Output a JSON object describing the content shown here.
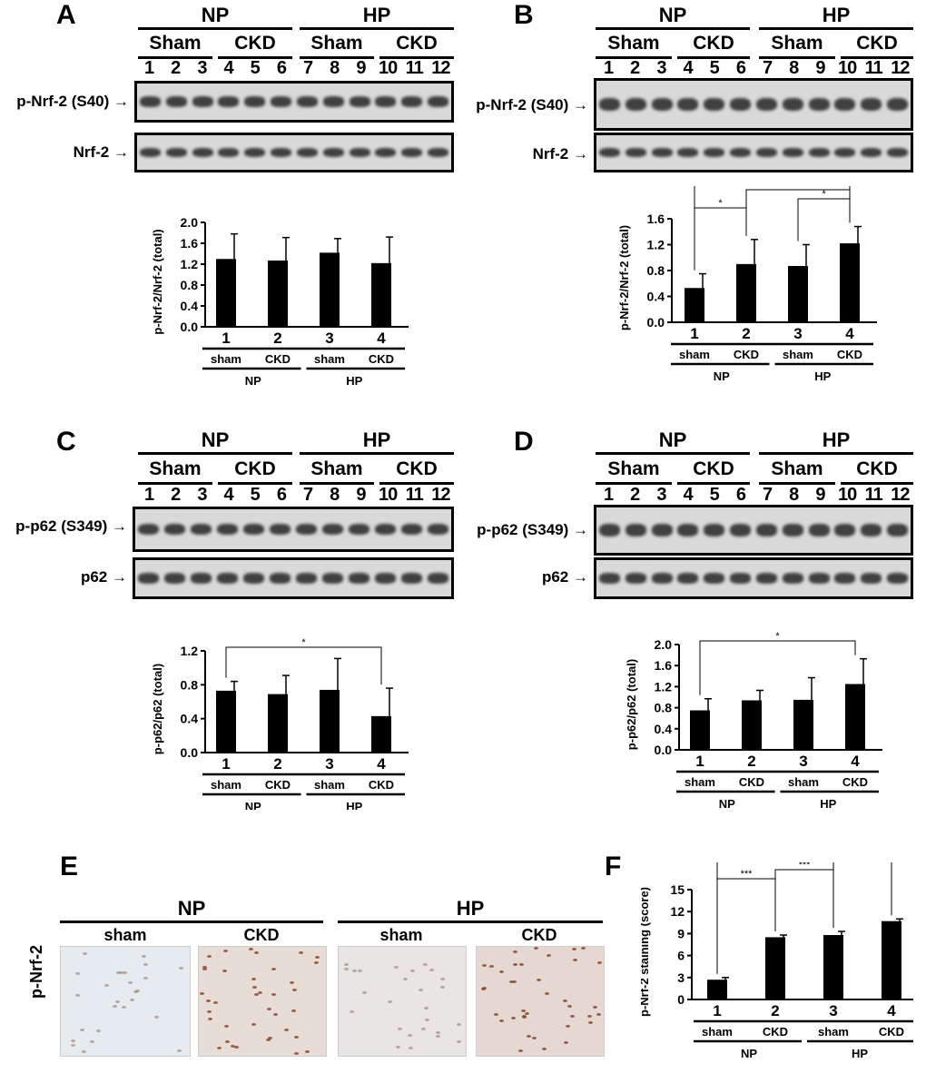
{
  "panels": {
    "A": {
      "letter": "A",
      "groups": [
        "NP",
        "HP"
      ],
      "subgroups": [
        "Sham",
        "CKD",
        "Sham",
        "CKD"
      ],
      "lanes": [
        "1",
        "2",
        "3",
        "4",
        "5",
        "6",
        "7",
        "8",
        "9",
        "10",
        "11",
        "12"
      ],
      "blots": [
        {
          "label": "p-Nrf-2 (S40)",
          "arrow": "→"
        },
        {
          "label": "Nrf-2",
          "arrow": "→"
        }
      ]
    },
    "B": {
      "letter": "B",
      "groups": [
        "NP",
        "HP"
      ],
      "subgroups": [
        "Sham",
        "CKD",
        "Sham",
        "CKD"
      ],
      "lanes": [
        "1",
        "2",
        "3",
        "4",
        "5",
        "6",
        "7",
        "8",
        "9",
        "10",
        "11",
        "12"
      ],
      "blots": [
        {
          "label": "p-Nrf-2 (S40)",
          "arrow": "→"
        },
        {
          "label": "Nrf-2",
          "arrow": "→"
        }
      ]
    },
    "C": {
      "letter": "C",
      "groups": [
        "NP",
        "HP"
      ],
      "subgroups": [
        "Sham",
        "CKD",
        "Sham",
        "CKD"
      ],
      "lanes": [
        "1",
        "2",
        "3",
        "4",
        "5",
        "6",
        "7",
        "8",
        "9",
        "10",
        "11",
        "12"
      ],
      "blots": [
        {
          "label": "p-p62 (S349)",
          "arrow": "→"
        },
        {
          "label": "p62",
          "arrow": "→"
        }
      ]
    },
    "D": {
      "letter": "D",
      "groups": [
        "NP",
        "HP"
      ],
      "subgroups": [
        "Sham",
        "CKD",
        "Sham",
        "CKD"
      ],
      "lanes": [
        "1",
        "2",
        "3",
        "4",
        "5",
        "6",
        "7",
        "8",
        "9",
        "10",
        "11",
        "12"
      ],
      "blots": [
        {
          "label": "p-p62 (S349)",
          "arrow": "→"
        },
        {
          "label": "p62",
          "arrow": "→"
        }
      ]
    },
    "E": {
      "letter": "E",
      "groups": [
        "NP",
        "HP"
      ],
      "subgroups": [
        "sham",
        "CKD",
        "sham",
        "CKD"
      ],
      "row_label": "p-Nrf-2"
    },
    "F": {
      "letter": "F"
    }
  },
  "chart_data": [
    {
      "id": "A",
      "type": "bar",
      "ylabel": "p-Nrf-2/Nrf-2 (total)",
      "ylim": [
        0,
        2.0
      ],
      "yticks": [
        "0.0",
        "0.4",
        "0.8",
        "1.2",
        "1.6",
        "2.0"
      ],
      "categories": [
        "1",
        "2",
        "3",
        "4"
      ],
      "values": [
        1.3,
        1.27,
        1.42,
        1.22
      ],
      "errors": [
        0.48,
        0.44,
        0.27,
        0.5
      ],
      "sublabels": [
        "sham",
        "CKD",
        "sham",
        "CKD"
      ],
      "groups": [
        "NP",
        "HP"
      ],
      "significance": []
    },
    {
      "id": "B",
      "type": "bar",
      "ylabel": "p-Nrf-2/Nrf-2 (total)",
      "ylim": [
        0,
        1.6
      ],
      "yticks": [
        "0.0",
        "0.4",
        "0.8",
        "1.2",
        "1.6"
      ],
      "categories": [
        "1",
        "2",
        "3",
        "4"
      ],
      "values": [
        0.53,
        0.9,
        0.87,
        1.22
      ],
      "errors": [
        0.22,
        0.38,
        0.33,
        0.26
      ],
      "sublabels": [
        "sham",
        "CKD",
        "sham",
        "CKD"
      ],
      "groups": [
        "NP",
        "HP"
      ],
      "significance": [
        {
          "from": 0,
          "to": 3,
          "label": "***",
          "level": 3
        },
        {
          "from": 1,
          "to": 3,
          "label": "*",
          "level": 2
        },
        {
          "from": 2,
          "to": 3,
          "label": "*",
          "level": 1
        },
        {
          "from": 0,
          "to": 1,
          "label": "*",
          "level": 0
        }
      ]
    },
    {
      "id": "C",
      "type": "bar",
      "ylabel": "p-p62/p62 (total)",
      "ylim": [
        0,
        1.2
      ],
      "yticks": [
        "0.0",
        "0.4",
        "0.8",
        "1.2"
      ],
      "categories": [
        "1",
        "2",
        "3",
        "4"
      ],
      "values": [
        0.73,
        0.69,
        0.74,
        0.43
      ],
      "errors": [
        0.11,
        0.22,
        0.37,
        0.33
      ],
      "sublabels": [
        "sham",
        "CKD",
        "sham",
        "CKD"
      ],
      "groups": [
        "NP",
        "HP"
      ],
      "significance": [
        {
          "from": 0,
          "to": 3,
          "label": "*",
          "level": 0
        }
      ]
    },
    {
      "id": "D",
      "type": "bar",
      "ylabel": "p-p62/p62 (total)",
      "ylim": [
        0,
        2.0
      ],
      "yticks": [
        "0.0",
        "0.4",
        "0.8",
        "1.2",
        "1.6",
        "2.0"
      ],
      "categories": [
        "1",
        "2",
        "3",
        "4"
      ],
      "values": [
        0.75,
        0.94,
        0.95,
        1.25
      ],
      "errors": [
        0.22,
        0.19,
        0.42,
        0.48
      ],
      "sublabels": [
        "sham",
        "CKD",
        "sham",
        "CKD"
      ],
      "groups": [
        "NP",
        "HP"
      ],
      "significance": [
        {
          "from": 0,
          "to": 3,
          "label": "*",
          "level": 0
        }
      ]
    },
    {
      "id": "F",
      "type": "bar",
      "ylabel": "p-Nrf-2 staining (score)",
      "ylim": [
        0,
        15
      ],
      "yticks": [
        "0",
        "3",
        "6",
        "9",
        "12",
        "15"
      ],
      "categories": [
        "1",
        "2",
        "3",
        "4"
      ],
      "values": [
        2.7,
        8.5,
        8.8,
        10.7
      ],
      "errors": [
        0.3,
        0.3,
        0.5,
        0.3
      ],
      "sublabels": [
        "sham",
        "CKD",
        "sham",
        "CKD"
      ],
      "groups": [
        "NP",
        "HP"
      ],
      "significance": [
        {
          "from": 0,
          "to": 1,
          "label": "***",
          "level": 0
        },
        {
          "from": 1,
          "to": 2,
          "label": "***",
          "level": 1
        },
        {
          "from": 0,
          "to": 3,
          "label": "***",
          "level": 3
        },
        {
          "from": 2,
          "to": 3,
          "label": "**",
          "level": 4
        }
      ]
    }
  ]
}
